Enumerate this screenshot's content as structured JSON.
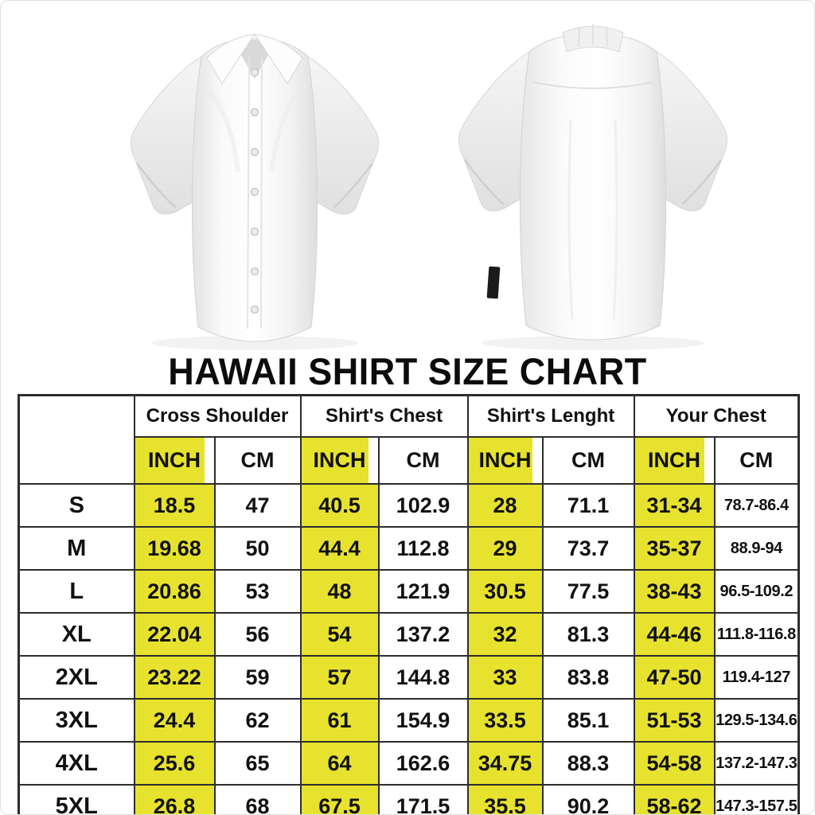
{
  "chart_data": {
    "type": "table",
    "title": "HAWAII SHIRT SIZE CHART",
    "column_groups": [
      "Cross Shoulder",
      "Shirt's Chest",
      "Shirt's Lenght",
      "Your Chest"
    ],
    "unit_inch": "INCH",
    "unit_cm": "CM",
    "size_corner": "",
    "columns": [
      "Size",
      "Cross Shoulder INCH",
      "Cross Shoulder CM",
      "Shirt's Chest INCH",
      "Shirt's Chest CM",
      "Shirt's Lenght INCH",
      "Shirt's Lenght CM",
      "Your Chest INCH",
      "Your Chest CM"
    ],
    "rows": [
      [
        "S",
        "18.5",
        "47",
        "40.5",
        "102.9",
        "28",
        "71.1",
        "31-34",
        "78.7-86.4"
      ],
      [
        "M",
        "19.68",
        "50",
        "44.4",
        "112.8",
        "29",
        "73.7",
        "35-37",
        "88.9-94"
      ],
      [
        "L",
        "20.86",
        "53",
        "48",
        "121.9",
        "30.5",
        "77.5",
        "38-43",
        "96.5-109.2"
      ],
      [
        "XL",
        "22.04",
        "56",
        "54",
        "137.2",
        "32",
        "81.3",
        "44-46",
        "111.8-116.8"
      ],
      [
        "2XL",
        "23.22",
        "59",
        "57",
        "144.8",
        "33",
        "83.8",
        "47-50",
        "119.4-127"
      ],
      [
        "3XL",
        "24.4",
        "62",
        "61",
        "154.9",
        "33.5",
        "85.1",
        "51-53",
        "129.5-134.6"
      ],
      [
        "4XL",
        "25.6",
        "65",
        "64",
        "162.6",
        "34.75",
        "88.3",
        "54-58",
        "137.2-147.3"
      ],
      [
        "5XL",
        "26.8",
        "68",
        "67.5",
        "171.5",
        "35.5",
        "90.2",
        "58-62",
        "147.3-157.5"
      ]
    ],
    "highlighted_unit": "INCH",
    "colors": {
      "highlight": "#e7e22e",
      "border": "#2d2d2d",
      "text": "#111111",
      "background": "#ffffff"
    }
  }
}
